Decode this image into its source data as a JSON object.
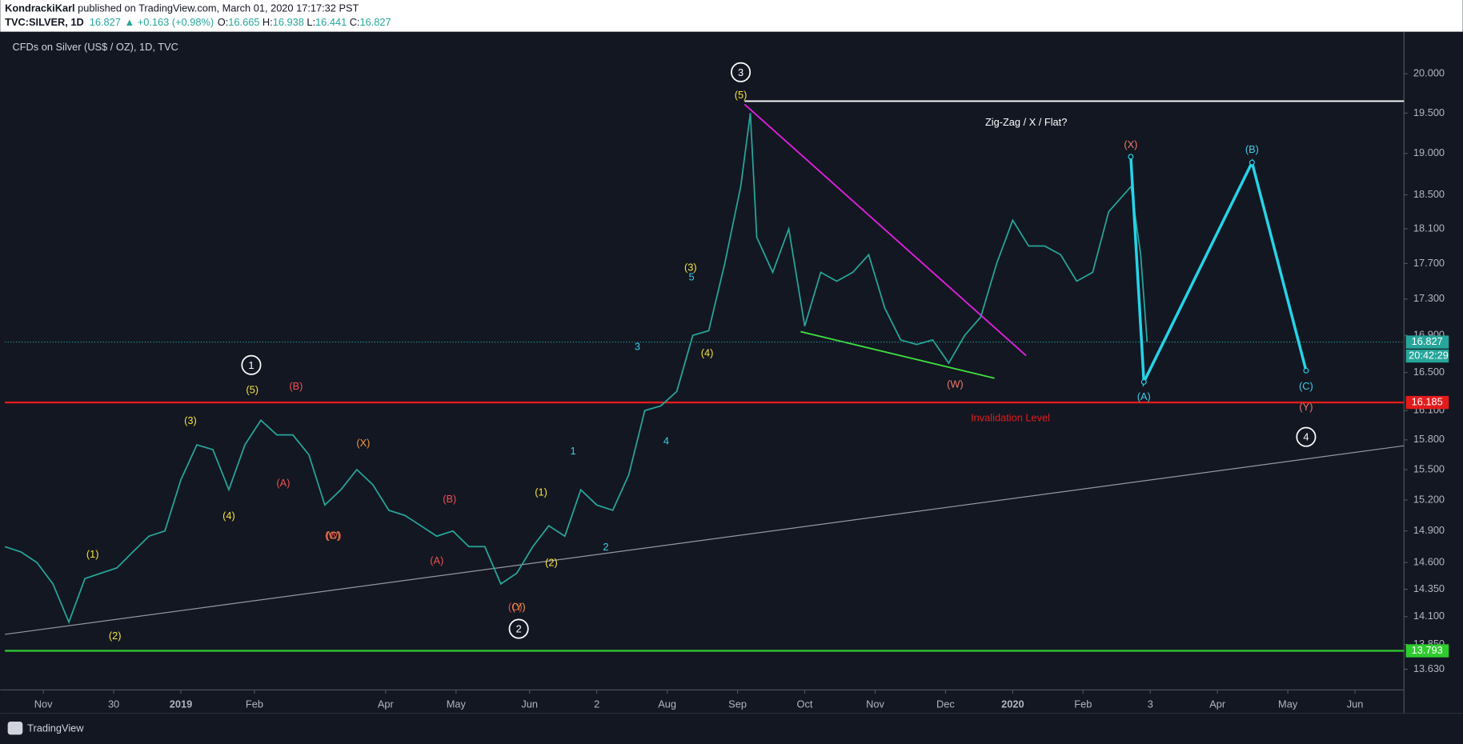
{
  "header": {
    "author": "KondrackiKarl",
    "published": " published on TradingView.com, March 01, 2020 17:17:32 PST",
    "symbol": "TVC:SILVER, 1D",
    "last": "16.827",
    "change": "▲ +0.163 (+0.98%)",
    "o_label": "O:",
    "o": "16.665",
    "h_label": "H:",
    "h": "16.938",
    "l_label": "L:",
    "l": "16.441",
    "c_label": "C:",
    "c": "16.827"
  },
  "footer": {
    "brand": "TradingView"
  },
  "chart_data": {
    "type": "line",
    "title": "CFDs on Silver (US$ / OZ), 1D, TVC",
    "color": "#26a69a",
    "log_scale": true,
    "grid": false,
    "x": [
      0,
      5,
      10,
      15,
      20,
      25,
      30,
      35,
      40,
      45,
      50,
      55,
      60,
      65,
      70,
      75,
      80,
      85,
      90,
      95,
      100,
      105,
      110,
      115,
      120,
      125,
      130,
      135,
      140,
      145,
      150,
      155,
      160,
      165,
      170,
      175,
      180,
      185,
      190,
      195,
      200,
      205,
      210,
      215,
      220,
      225,
      230,
      233,
      235,
      240,
      245,
      250,
      255,
      260,
      265,
      270,
      275,
      280,
      285,
      290,
      295,
      300,
      305,
      310,
      315,
      320,
      325,
      330,
      335,
      340,
      345,
      352,
      355,
      357
    ],
    "values": [
      14.75,
      14.7,
      14.6,
      14.4,
      14.05,
      14.45,
      14.5,
      14.55,
      14.7,
      14.85,
      14.9,
      15.4,
      15.75,
      15.7,
      15.3,
      15.75,
      16.0,
      15.85,
      15.85,
      15.65,
      15.15,
      15.3,
      15.5,
      15.35,
      15.1,
      15.05,
      14.95,
      14.85,
      14.9,
      14.75,
      14.75,
      14.4,
      14.5,
      14.75,
      14.95,
      14.85,
      15.3,
      15.15,
      15.1,
      15.45,
      16.1,
      16.15,
      16.3,
      16.9,
      16.95,
      17.7,
      18.6,
      19.5,
      18.0,
      17.6,
      18.1,
      17.0,
      17.6,
      17.5,
      17.6,
      17.8,
      17.2,
      16.85,
      16.8,
      16.85,
      16.6,
      16.9,
      17.1,
      17.7,
      18.2,
      17.9,
      17.9,
      17.8,
      17.5,
      17.6,
      18.3,
      18.6,
      17.8,
      16.83
    ],
    "xlim": [
      0,
      437.3
    ],
    "ylim": [
      13.45,
      20.5
    ],
    "yticks": [
      {
        "value": 20,
        "label": "20.000"
      },
      {
        "value": 19.5,
        "label": "19.500"
      },
      {
        "value": 19,
        "label": "19.000"
      },
      {
        "value": 18.5,
        "label": "18.500"
      },
      {
        "value": 18.1,
        "label": "18.100"
      },
      {
        "value": 17.7,
        "label": "17.700"
      },
      {
        "value": 17.3,
        "label": "17.300"
      },
      {
        "value": 16.9,
        "label": "16.900"
      },
      {
        "value": 16.5,
        "label": "16.500"
      },
      {
        "value": 16.1,
        "label": "16.100"
      },
      {
        "value": 15.8,
        "label": "15.800"
      },
      {
        "value": 15.5,
        "label": "15.500"
      },
      {
        "value": 15.2,
        "label": "15.200"
      },
      {
        "value": 14.9,
        "label": "14.900"
      },
      {
        "value": 14.6,
        "label": "14.600"
      },
      {
        "value": 14.35,
        "label": "14.350"
      },
      {
        "value": 14.1,
        "label": "14.100"
      },
      {
        "value": 13.85,
        "label": "13.850"
      },
      {
        "value": 13.63,
        "label": "13.630"
      }
    ],
    "xticks": [
      {
        "value": 12,
        "label": "Nov"
      },
      {
        "value": 34,
        "label": "30"
      },
      {
        "value": 55,
        "label": "2019"
      },
      {
        "value": 78,
        "label": "Feb"
      },
      {
        "value": 119,
        "label": "Apr"
      },
      {
        "value": 141,
        "label": "May"
      },
      {
        "value": 164,
        "label": "Jun"
      },
      {
        "value": 185,
        "label": "2"
      },
      {
        "value": 207,
        "label": "Aug"
      },
      {
        "value": 229,
        "label": "Sep"
      },
      {
        "value": 250,
        "label": "Oct"
      },
      {
        "value": 272,
        "label": "Nov"
      },
      {
        "value": 294,
        "label": "Dec"
      },
      {
        "value": 315,
        "label": "2020"
      },
      {
        "value": 337,
        "label": "Feb"
      },
      {
        "value": 358,
        "label": "3"
      },
      {
        "value": 379,
        "label": "Apr"
      },
      {
        "value": 401,
        "label": "May"
      },
      {
        "value": 422,
        "label": "Jun"
      }
    ],
    "last_price": 16.827,
    "countdown": "20:42:29",
    "hlines": [
      {
        "value": 16.185,
        "color": "#e31b1b"
      },
      {
        "value": 13.793,
        "color": "#2ecc2e"
      }
    ],
    "trendlines": [
      {
        "x": [
          231.2,
          437.3
        ],
        "y": [
          19.65,
          19.65
        ],
        "color": "#ffffff"
      },
      {
        "x": [
          0,
          437.3
        ],
        "y": [
          13.94,
          15.74
        ],
        "color": "#9598a1"
      },
      {
        "x": [
          231.2,
          319.2
        ],
        "y": [
          19.61,
          16.68
        ],
        "color": "#e020e0"
      },
      {
        "x": [
          248.7,
          309.3
        ],
        "y": [
          16.94,
          16.44
        ],
        "color": "#3fe03f"
      }
    ],
    "projection": {
      "color": "#26d4e8",
      "x": [
        351.9,
        356,
        389.8,
        406.7
      ],
      "y": [
        18.96,
        16.4,
        18.89,
        16.52
      ]
    },
    "annotations": [
      {
        "text": "1",
        "x": 77,
        "y": 16.58,
        "color": "#ffffff",
        "circled": true
      },
      {
        "text": "(5)",
        "x": 77.3,
        "y": 16.32,
        "color": "#f5e33b"
      },
      {
        "text": "(B)",
        "x": 91,
        "y": 16.36,
        "color": "#f05050"
      },
      {
        "text": "(3)",
        "x": 58,
        "y": 16.0,
        "color": "#f5e33b"
      },
      {
        "text": "(X)",
        "x": 112,
        "y": 15.77,
        "color": "#f59a3b"
      },
      {
        "text": "(A)",
        "x": 87,
        "y": 15.37,
        "color": "#f05050"
      },
      {
        "text": "(4)",
        "x": 70,
        "y": 15.05,
        "color": "#f5e33b"
      },
      {
        "text": "(C)",
        "x": 102.6,
        "y": 14.86,
        "color": "#f59a3b"
      },
      {
        "text": "(W)",
        "x": 102.6,
        "y": 14.86,
        "color": "#f05050"
      },
      {
        "text": "(B)",
        "x": 139,
        "y": 15.21,
        "color": "#f05050"
      },
      {
        "text": "(A)",
        "x": 135,
        "y": 14.62,
        "color": "#f05050"
      },
      {
        "text": "(1)",
        "x": 27.4,
        "y": 14.68,
        "color": "#f5e33b"
      },
      {
        "text": "(2)",
        "x": 34.4,
        "y": 13.93,
        "color": "#f5e33b"
      },
      {
        "text": "(C)",
        "x": 159.5,
        "y": 14.19,
        "color": "#f05050"
      },
      {
        "text": "(Y)",
        "x": 160.6,
        "y": 14.19,
        "color": "#f59a3b"
      },
      {
        "text": "2",
        "x": 160.6,
        "y": 13.99,
        "color": "#ffffff",
        "circled": true
      },
      {
        "text": "(1)",
        "x": 167.6,
        "y": 15.28,
        "color": "#f5e33b"
      },
      {
        "text": "(2)",
        "x": 170.8,
        "y": 14.6,
        "color": "#f5e33b"
      },
      {
        "text": "1",
        "x": 177.6,
        "y": 15.69,
        "color": "#3ad0e8"
      },
      {
        "text": "2",
        "x": 187.8,
        "y": 14.75,
        "color": "#3ad0e8"
      },
      {
        "text": "3",
        "x": 197.7,
        "y": 16.78,
        "color": "#3ad0e8"
      },
      {
        "text": "4",
        "x": 206.7,
        "y": 15.79,
        "color": "#3ad0e8"
      },
      {
        "text": "(3)",
        "x": 214.3,
        "y": 17.66,
        "color": "#f5e33b"
      },
      {
        "text": "5",
        "x": 214.6,
        "y": 17.55,
        "color": "#3ad0e8"
      },
      {
        "text": "(4)",
        "x": 219.5,
        "y": 16.71,
        "color": "#f5e33b"
      },
      {
        "text": "3",
        "x": 230,
        "y": 20.02,
        "color": "#ffffff",
        "circled": true
      },
      {
        "text": "(5)",
        "x": 230,
        "y": 19.73,
        "color": "#f5e33b"
      },
      {
        "text": "Zig-Zag / X / Flat?",
        "x": 319.2,
        "y": 19.39,
        "color": "#ffffff",
        "large": true
      },
      {
        "text": "(X)",
        "x": 351.9,
        "y": 19.11,
        "color": "#f07a6a"
      },
      {
        "text": "(B)",
        "x": 389.8,
        "y": 19.05,
        "color": "#3ad0e8"
      },
      {
        "text": "(W)",
        "x": 297,
        "y": 16.38,
        "color": "#f07a6a"
      },
      {
        "text": "Invalidation Level",
        "x": 314.3,
        "y": 16.03,
        "color": "#e31b1b",
        "large": true
      },
      {
        "text": "(A)",
        "x": 356,
        "y": 16.25,
        "color": "#3ad0e8"
      },
      {
        "text": "(C)",
        "x": 406.7,
        "y": 16.36,
        "color": "#3ad0e8"
      },
      {
        "text": "(Y)",
        "x": 406.7,
        "y": 16.14,
        "color": "#f07a6a"
      },
      {
        "text": "4",
        "x": 406.7,
        "y": 15.83,
        "color": "#ffffff",
        "circled": true
      }
    ]
  }
}
